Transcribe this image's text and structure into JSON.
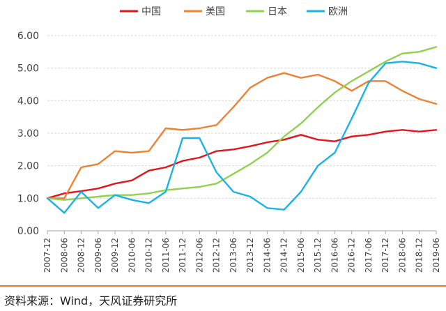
{
  "source": "资料来源：Wind，天风证券研究所",
  "chart_data": {
    "type": "line",
    "title": "",
    "xlabel": "",
    "ylabel": "",
    "ylim": [
      0,
      6
    ],
    "yticks": [
      "0.00",
      "1.00",
      "2.00",
      "3.00",
      "4.00",
      "5.00",
      "6.00"
    ],
    "xticks": [
      "2007-12",
      "2008-06",
      "2008-12",
      "2009-06",
      "2009-12",
      "2010-06",
      "2010-12",
      "2011-06",
      "2011-12",
      "2012-06",
      "2012-12",
      "2013-06",
      "2013-12",
      "2014-06",
      "2014-12",
      "2015-06",
      "2015-12",
      "2016-06",
      "2016-12",
      "2017-06",
      "2017-12",
      "2018-06",
      "2018-12",
      "2019-06"
    ],
    "grid": "horizontal",
    "legend_position": "top",
    "x": [
      "2007-12",
      "2008-06",
      "2008-12",
      "2009-06",
      "2009-12",
      "2010-06",
      "2010-12",
      "2011-06",
      "2011-12",
      "2012-06",
      "2012-12",
      "2013-06",
      "2013-12",
      "2014-06",
      "2014-12",
      "2015-06",
      "2015-12",
      "2016-06",
      "2016-12",
      "2017-06",
      "2017-12",
      "2018-06",
      "2018-12",
      "2019-06"
    ],
    "series": [
      {
        "name": "中国",
        "color": "#e3141b",
        "values": [
          1.0,
          1.15,
          1.22,
          1.3,
          1.45,
          1.55,
          1.85,
          1.95,
          2.15,
          2.25,
          2.45,
          2.5,
          2.6,
          2.72,
          2.8,
          2.95,
          2.8,
          2.75,
          2.9,
          2.95,
          3.05,
          3.1,
          3.05,
          3.1
        ]
      },
      {
        "name": "美国",
        "color": "#ee8234",
        "values": [
          1.0,
          1.0,
          1.95,
          2.05,
          2.45,
          2.4,
          2.45,
          3.15,
          3.1,
          3.15,
          3.25,
          3.8,
          4.4,
          4.7,
          4.85,
          4.7,
          4.8,
          4.6,
          4.3,
          4.6,
          4.6,
          4.3,
          4.05,
          3.9
        ]
      },
      {
        "name": "日本",
        "color": "#92d050",
        "values": [
          1.0,
          0.95,
          1.0,
          1.05,
          1.1,
          1.1,
          1.15,
          1.25,
          1.3,
          1.35,
          1.45,
          1.75,
          2.05,
          2.4,
          2.9,
          3.3,
          3.8,
          4.25,
          4.6,
          4.9,
          5.2,
          5.45,
          5.5,
          5.65
        ]
      },
      {
        "name": "欧洲",
        "color": "#1ab3e6",
        "values": [
          1.0,
          0.55,
          1.2,
          0.7,
          1.1,
          0.95,
          0.85,
          1.2,
          2.85,
          2.85,
          1.8,
          1.2,
          1.05,
          0.7,
          0.65,
          1.2,
          2.0,
          2.4,
          3.45,
          4.55,
          5.15,
          5.2,
          5.15,
          5.0
        ]
      }
    ]
  }
}
